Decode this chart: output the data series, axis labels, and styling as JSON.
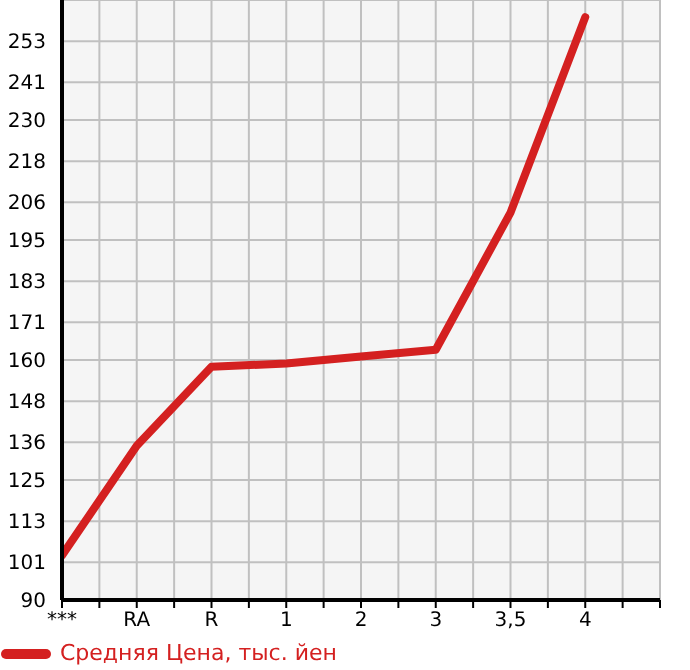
{
  "chart_data": {
    "type": "line",
    "categories": [
      "***",
      "RA",
      "R",
      "1",
      "2",
      "3",
      "3,5",
      "4"
    ],
    "series": [
      {
        "name": "Средняя Цена, тыс. йен",
        "color": "#d42020",
        "values": [
          103,
          135,
          158,
          159,
          161,
          163,
          203,
          260
        ]
      }
    ],
    "ylim": [
      90,
      265
    ],
    "yticks": [
      90,
      101,
      113,
      125,
      136,
      148,
      160,
      171,
      183,
      195,
      206,
      218,
      230,
      241,
      253
    ],
    "grid": true,
    "legend": "bottom left",
    "marker": "none",
    "line_style": "solid"
  }
}
